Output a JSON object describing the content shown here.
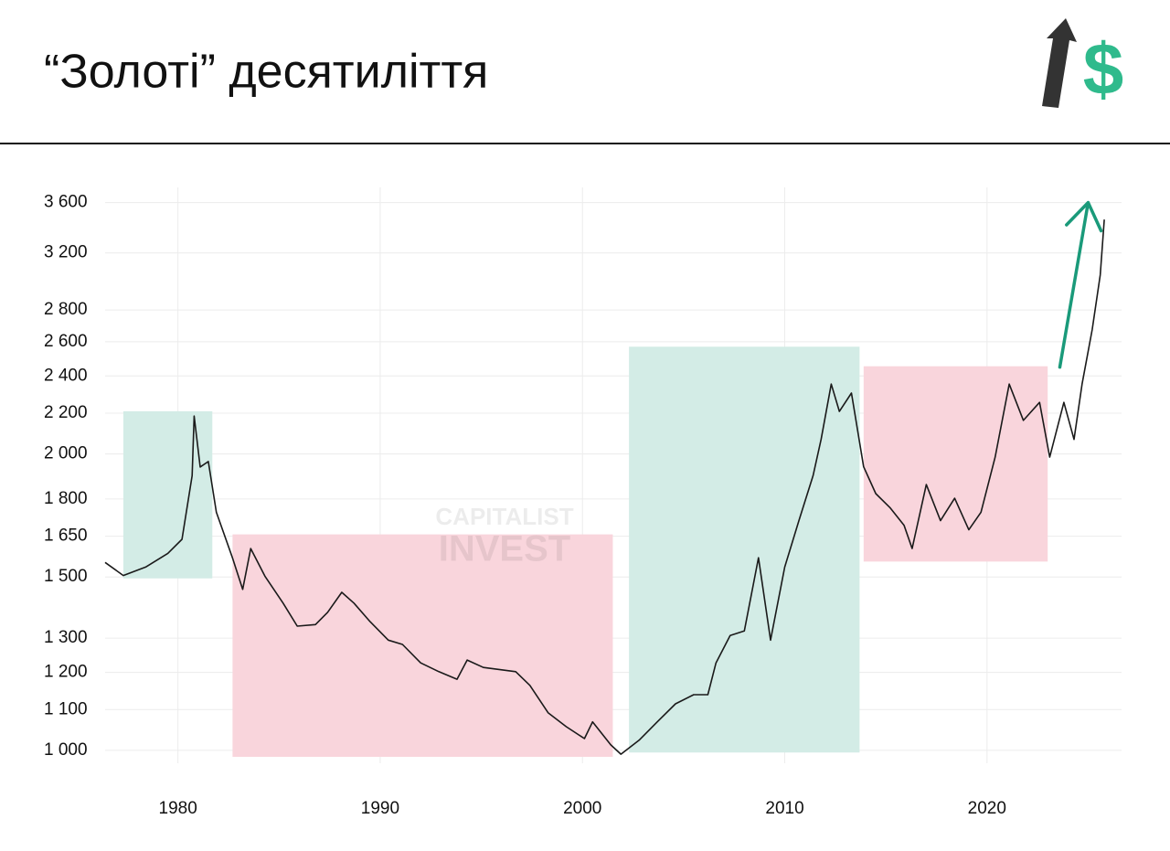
{
  "chart_data": {
    "type": "line",
    "title": "“Золоті” десятиліття",
    "logo_symbol": "$",
    "watermark": [
      "CAPITALIST",
      "INVEST"
    ],
    "color": "#1a1a1a",
    "log_y": true,
    "grid": true,
    "xlim": [
      1976.4,
      2026.2
    ],
    "xticks": [
      1980,
      1990,
      2000,
      2010,
      2020
    ],
    "ylim": [
      960,
      3730
    ],
    "yticks": [
      {
        "value": 1000,
        "label": "1 000"
      },
      {
        "value": 1100,
        "label": "1 100"
      },
      {
        "value": 1200,
        "label": "1 200"
      },
      {
        "value": 1300,
        "label": "1 300"
      },
      {
        "value": 1500,
        "label": "1 500"
      },
      {
        "value": 1650,
        "label": "1 650"
      },
      {
        "value": 1800,
        "label": "1 800"
      },
      {
        "value": 2000,
        "label": "2 000"
      },
      {
        "value": 2200,
        "label": "2 200"
      },
      {
        "value": 2400,
        "label": "2 400"
      },
      {
        "value": 2600,
        "label": "2 600"
      },
      {
        "value": 2800,
        "label": "2 800"
      },
      {
        "value": 3200,
        "label": "3 200"
      },
      {
        "value": 3600,
        "label": "3 600"
      }
    ],
    "x": [
      1976.4,
      1977.3,
      1978.4,
      1979.5,
      1980.2,
      1980.7,
      1980.8,
      1981.1,
      1981.5,
      1981.9,
      1982.7,
      1983.2,
      1983.6,
      1984.3,
      1985.2,
      1985.9,
      1986.8,
      1987.4,
      1988.1,
      1988.7,
      1989.5,
      1990.4,
      1991.1,
      1992.0,
      1992.9,
      1993.8,
      1994.3,
      1995.1,
      1996.7,
      1997.4,
      1998.3,
      1999.2,
      2000.1,
      2000.5,
      2001.4,
      2001.9,
      2002.8,
      2003.7,
      2004.6,
      2005.5,
      2006.2,
      2006.6,
      2007.3,
      2008.0,
      2008.7,
      2009.3,
      2010.0,
      2010.7,
      2011.4,
      2011.8,
      2012.3,
      2012.7,
      2013.3,
      2013.9,
      2014.5,
      2015.2,
      2015.9,
      2016.3,
      2017.0,
      2017.7,
      2018.4,
      2019.1,
      2019.7,
      2020.4,
      2021.1,
      2021.8,
      2022.6,
      2023.1,
      2023.8,
      2024.3,
      2024.7,
      2025.2,
      2025.6,
      2025.8
    ],
    "values": [
      1552,
      1505,
      1535,
      1585,
      1638,
      1901,
      2185,
      1940,
      1965,
      1745,
      1568,
      1457,
      1603,
      1503,
      1411,
      1337,
      1342,
      1381,
      1447,
      1411,
      1351,
      1294,
      1281,
      1227,
      1202,
      1181,
      1235,
      1214,
      1202,
      1164,
      1092,
      1057,
      1028,
      1069,
      1013,
      991,
      1024,
      1069,
      1115,
      1139,
      1139,
      1227,
      1308,
      1322,
      1569,
      1294,
      1535,
      1711,
      1901,
      2069,
      2355,
      2209,
      2306,
      1941,
      1823,
      1764,
      1692,
      1603,
      1862,
      1711,
      1803,
      1675,
      1745,
      1985,
      2355,
      2163,
      2256,
      1985,
      2256,
      2069,
      2355,
      2675,
      3040,
      3460
    ],
    "highlight_boxes": [
      {
        "x": [
          1977.3,
          1981.7
        ],
        "y": [
          1495,
          2210
        ],
        "color": "#d3ece6"
      },
      {
        "x": [
          1982.7,
          2001.5
        ],
        "y": [
          985,
          1657
        ],
        "color": "#f9d5dc"
      },
      {
        "x": [
          2002.3,
          2013.7
        ],
        "y": [
          995,
          2570
        ],
        "color": "#d3ece6"
      },
      {
        "x": [
          2013.9,
          2023.0
        ],
        "y": [
          1555,
          2455
        ],
        "color": "#f9d5dc"
      }
    ],
    "arrow": {
      "from": [
        2023.6,
        2450
      ],
      "to": [
        2025.0,
        3600
      ],
      "color": "#1a9a7a"
    }
  }
}
